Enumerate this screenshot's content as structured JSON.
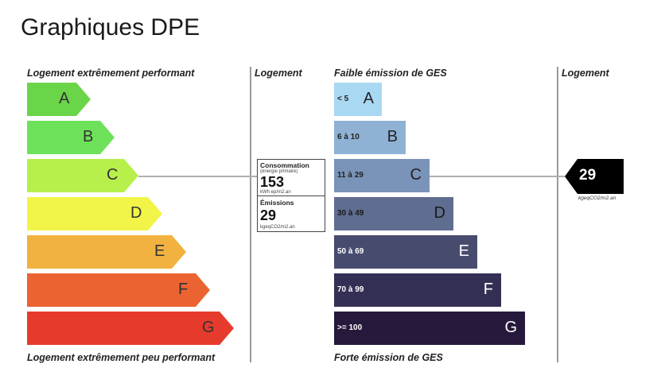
{
  "title": "Graphiques DPE",
  "energy": {
    "header_top": "Logement extrêmement performant",
    "header_bottom": "Logement extrêmement peu performant",
    "column_header": "Logement",
    "classes": [
      {
        "letter": "A",
        "color": "#6bd54a"
      },
      {
        "letter": "B",
        "color": "#6ee15a"
      },
      {
        "letter": "C",
        "color": "#b7f04b"
      },
      {
        "letter": "D",
        "color": "#f2f548"
      },
      {
        "letter": "E",
        "color": "#f1b240"
      },
      {
        "letter": "F",
        "color": "#ec6332"
      },
      {
        "letter": "G",
        "color": "#e63b2c"
      }
    ],
    "current_class": "C",
    "consumption_label": "Consommation",
    "consumption_sub": "(énergie primaire)",
    "consumption_value": "153",
    "consumption_unit": "kWh ep/m2.an",
    "emissions_label": "Émissions",
    "emissions_value": "29",
    "emissions_unit": "kgeqCO2/m2.an"
  },
  "ges": {
    "header_top": "Faible émission de GES",
    "header_bottom": "Forte émission de GES",
    "column_header": "Logement",
    "classes": [
      {
        "letter": "A",
        "range": "< 5",
        "color": "#a9d8f2",
        "text": "#222222"
      },
      {
        "letter": "B",
        "range": "6 à 10",
        "color": "#8fb2d4",
        "text": "#222222"
      },
      {
        "letter": "C",
        "range": "11 à 29",
        "color": "#7a93b8",
        "text": "#222222"
      },
      {
        "letter": "D",
        "range": "30 à 49",
        "color": "#5e6d90",
        "text": "#1a1a1a"
      },
      {
        "letter": "E",
        "range": "50 à 69",
        "color": "#474c6f",
        "text": "#ffffff"
      },
      {
        "letter": "F",
        "range": "70 à 99",
        "color": "#342f54",
        "text": "#ffffff"
      },
      {
        "letter": "G",
        "range": ">= 100",
        "color": "#26193c",
        "text": "#ffffff"
      }
    ],
    "current_class": "C",
    "marker_value": "29",
    "marker_unit": "kgeqCO2/m2.an"
  }
}
